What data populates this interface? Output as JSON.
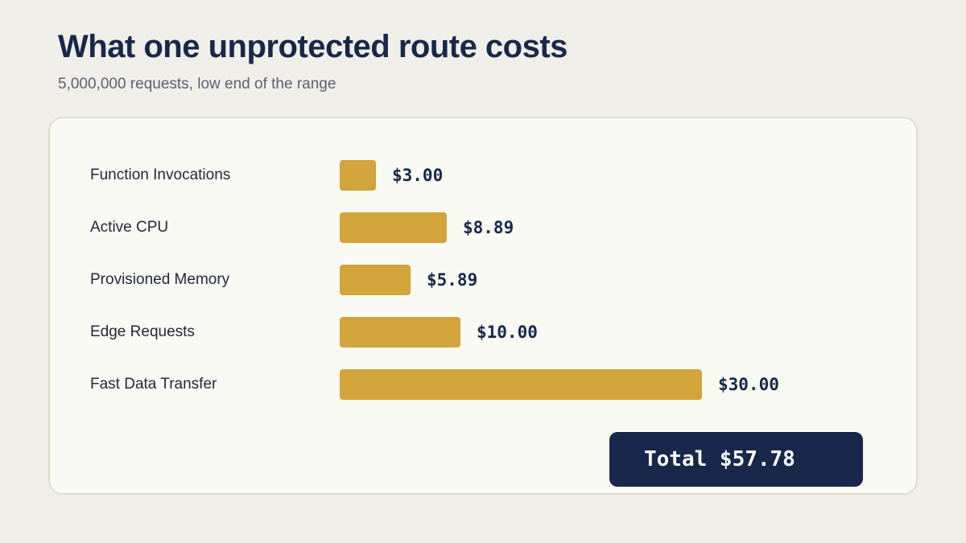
{
  "header": {
    "title": "What one unprotected route costs",
    "subtitle": "5,000,000 requests, low end of the range"
  },
  "colors": {
    "bar": "#d1a43c",
    "accent_dark": "#17284a",
    "background": "#f0eee9",
    "card": "#fafaf4"
  },
  "chart_data": {
    "type": "bar",
    "orientation": "horizontal",
    "title": "What one unprotected route costs",
    "subtitle": "5,000,000 requests, low end of the range",
    "categories": [
      "Function Invocations",
      "Active CPU",
      "Provisioned Memory",
      "Edge Requests",
      "Fast Data Transfer"
    ],
    "values": [
      3.0,
      8.89,
      5.89,
      10.0,
      30.0
    ],
    "value_labels": [
      "$3.00",
      "$8.89",
      "$5.89",
      "$10.00",
      "$30.00"
    ],
    "xlim": [
      0,
      30
    ],
    "grid": false,
    "legend": "none"
  },
  "total": {
    "label": "Total $57.78"
  }
}
